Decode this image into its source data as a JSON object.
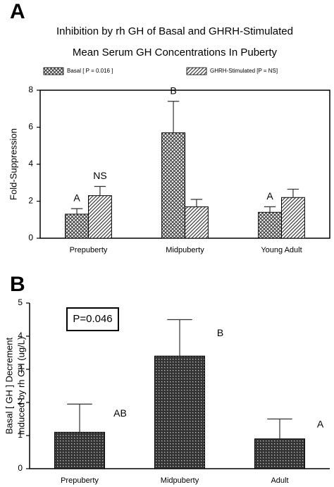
{
  "chart_data": [
    {
      "type": "bar",
      "panel_label": "A",
      "title": [
        "Inhibition by rh GH of Basal and GHRH-Stimulated",
        "Mean Serum GH Concentrations In Puberty"
      ],
      "ylabel": [
        "Fold-Suppression"
      ],
      "categories": [
        "Prepuberty",
        "Midpuberty",
        "Young Adult"
      ],
      "series": [
        {
          "name": "Basal [ P = 0.016 ]",
          "color": "#444444",
          "hatch": "cross",
          "values": [
            1.3,
            5.7,
            1.4
          ],
          "errors": [
            0.3,
            1.7,
            0.3
          ],
          "labels": [
            "A",
            "B",
            "A"
          ]
        },
        {
          "name": "GHRH-Stimulated [P = NS]",
          "color": "#444444",
          "hatch": "diagonal",
          "values": [
            2.3,
            1.7,
            2.2
          ],
          "errors": [
            0.5,
            0.4,
            0.45
          ],
          "labels": [
            "NS",
            null,
            null
          ]
        }
      ],
      "ylim": [
        0,
        8
      ],
      "yticks": [
        0,
        2,
        4,
        6,
        8
      ],
      "legend": true,
      "frame": true,
      "grid": false
    },
    {
      "type": "bar",
      "panel_label": "B",
      "ylabel": [
        "Basal [ GH ] Decrement",
        "Induced by rh GH (ug/L)"
      ],
      "annotation": "P=0.046",
      "categories": [
        "Prepuberty",
        "Midpuberty",
        "Adult"
      ],
      "series": [
        {
          "color": "#333333",
          "hatch": "dots",
          "values": [
            1.1,
            3.4,
            0.9
          ],
          "errors": [
            0.85,
            1.1,
            0.6
          ],
          "labels": [
            "AB",
            "B",
            "A"
          ]
        }
      ],
      "ylim": [
        0,
        5
      ],
      "yticks": [
        0,
        1,
        2,
        3,
        4,
        5
      ],
      "legend": false,
      "frame": false,
      "grid": false
    }
  ]
}
